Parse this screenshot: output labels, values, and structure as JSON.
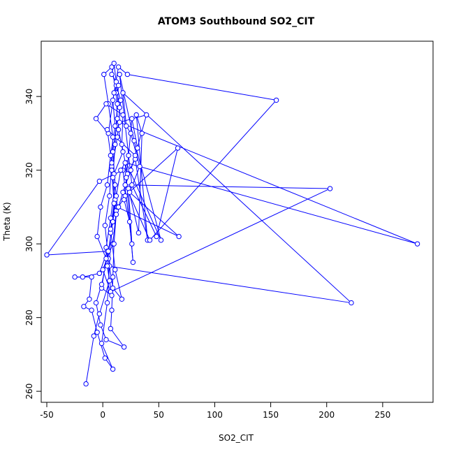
{
  "chart_data": {
    "type": "line",
    "title": "ATOM3 Southbound SO2_CIT",
    "xlabel": "SO2_CIT",
    "ylabel": "Theta (K)",
    "xlim": [
      -55,
      295
    ],
    "ylim": [
      257,
      355
    ],
    "x_ticks": [
      -50,
      0,
      50,
      100,
      150,
      200,
      250
    ],
    "y_ticks": [
      260,
      280,
      300,
      320,
      340
    ],
    "grid": false,
    "legend": "none",
    "series_color": "#0000ff",
    "marker": "open-circle",
    "series": [
      {
        "points": [
          [
            -15,
            262
          ],
          [
            -8,
            275
          ],
          [
            -3,
            281
          ],
          [
            6,
            290
          ],
          [
            3,
            299
          ],
          [
            7,
            307
          ],
          [
            11,
            316
          ],
          [
            9,
            325
          ],
          [
            13,
            334
          ],
          [
            12,
            341
          ],
          [
            8,
            348
          ],
          [
            1,
            346
          ],
          [
            5,
            338
          ],
          [
            9,
            329
          ],
          [
            8,
            321
          ],
          [
            11,
            312
          ],
          [
            7,
            303
          ],
          [
            6,
            294
          ],
          [
            4,
            284
          ],
          [
            -1,
            273
          ],
          [
            9,
            266
          ],
          [
            2,
            269
          ],
          [
            -5,
            276
          ],
          [
            -10,
            282
          ],
          [
            -17,
            283
          ],
          [
            -12,
            285
          ],
          [
            -10,
            291
          ],
          [
            -25,
            291
          ],
          [
            -18,
            291
          ],
          [
            -3,
            292
          ],
          [
            4,
            298
          ],
          [
            -50,
            297
          ],
          [
            -3,
            317
          ],
          [
            18,
            320
          ],
          [
            26,
            300
          ],
          [
            23,
            315
          ],
          [
            32,
            303
          ],
          [
            35,
            330
          ],
          [
            30,
            335
          ],
          [
            40,
            301
          ],
          [
            29,
            323
          ],
          [
            22,
            319
          ],
          [
            17,
            327
          ],
          [
            18,
            335
          ],
          [
            3,
            338
          ],
          [
            -6,
            334
          ],
          [
            5,
            330
          ],
          [
            10,
            341
          ],
          [
            14,
            348
          ],
          [
            22,
            346
          ],
          [
            155,
            339
          ],
          [
            42,
            301
          ],
          [
            20,
            316
          ],
          [
            203,
            315
          ],
          [
            7,
            287
          ],
          [
            0,
            293
          ],
          [
            9,
            300
          ],
          [
            12,
            309
          ],
          [
            20,
            313
          ],
          [
            67,
            326
          ],
          [
            48,
            302
          ],
          [
            26,
            316
          ],
          [
            15,
            346
          ],
          [
            28,
            328
          ],
          [
            52,
            301
          ],
          [
            21,
            322
          ],
          [
            281,
            300
          ],
          [
            15,
            333
          ],
          [
            39,
            335
          ],
          [
            29,
            324
          ],
          [
            4,
            331
          ],
          [
            8,
            322
          ],
          [
            6,
            313
          ],
          [
            2,
            305
          ],
          [
            5,
            296
          ],
          [
            9,
            288
          ],
          [
            17,
            285
          ],
          [
            11,
            293
          ],
          [
            7,
            304
          ],
          [
            10,
            311
          ],
          [
            8,
            320
          ],
          [
            13,
            329
          ],
          [
            16,
            339
          ],
          [
            12,
            343
          ],
          [
            15,
            337
          ],
          [
            14,
            331
          ],
          [
            18,
            325
          ],
          [
            10,
            319
          ],
          [
            13,
            310
          ],
          [
            68,
            302
          ],
          [
            24,
            314
          ],
          [
            33,
            321
          ],
          [
            25,
            330
          ],
          [
            21,
            332
          ],
          [
            18,
            341
          ],
          [
            222,
            284
          ],
          [
            4,
            294
          ],
          [
            8,
            286
          ],
          [
            -1,
            288
          ],
          [
            3,
            296
          ],
          [
            -5,
            302
          ],
          [
            -2,
            310
          ],
          [
            4,
            316
          ],
          [
            7,
            324
          ],
          [
            11,
            332
          ],
          [
            9,
            339
          ],
          [
            12,
            344
          ],
          [
            10,
            349
          ],
          [
            8,
            346
          ],
          [
            14,
            343
          ],
          [
            13,
            338
          ],
          [
            11,
            327
          ],
          [
            9,
            318
          ],
          [
            12,
            308
          ],
          [
            10,
            300
          ],
          [
            9,
            291
          ],
          [
            8,
            282
          ],
          [
            7,
            277
          ],
          [
            19,
            272
          ],
          [
            3,
            274
          ],
          [
            -2,
            278
          ],
          [
            -6,
            284
          ],
          [
            -1,
            289
          ],
          [
            5,
            298
          ],
          [
            9,
            306
          ],
          [
            12,
            313
          ],
          [
            16,
            320
          ],
          [
            20,
            322
          ],
          [
            27,
            295
          ],
          [
            24,
            306
          ],
          [
            19,
            312
          ],
          [
            21,
            318
          ],
          [
            23,
            324
          ],
          [
            26,
            334
          ],
          [
            31,
            326
          ],
          [
            25,
            320
          ],
          [
            18,
            314
          ],
          [
            14,
            310
          ]
        ]
      }
    ]
  }
}
